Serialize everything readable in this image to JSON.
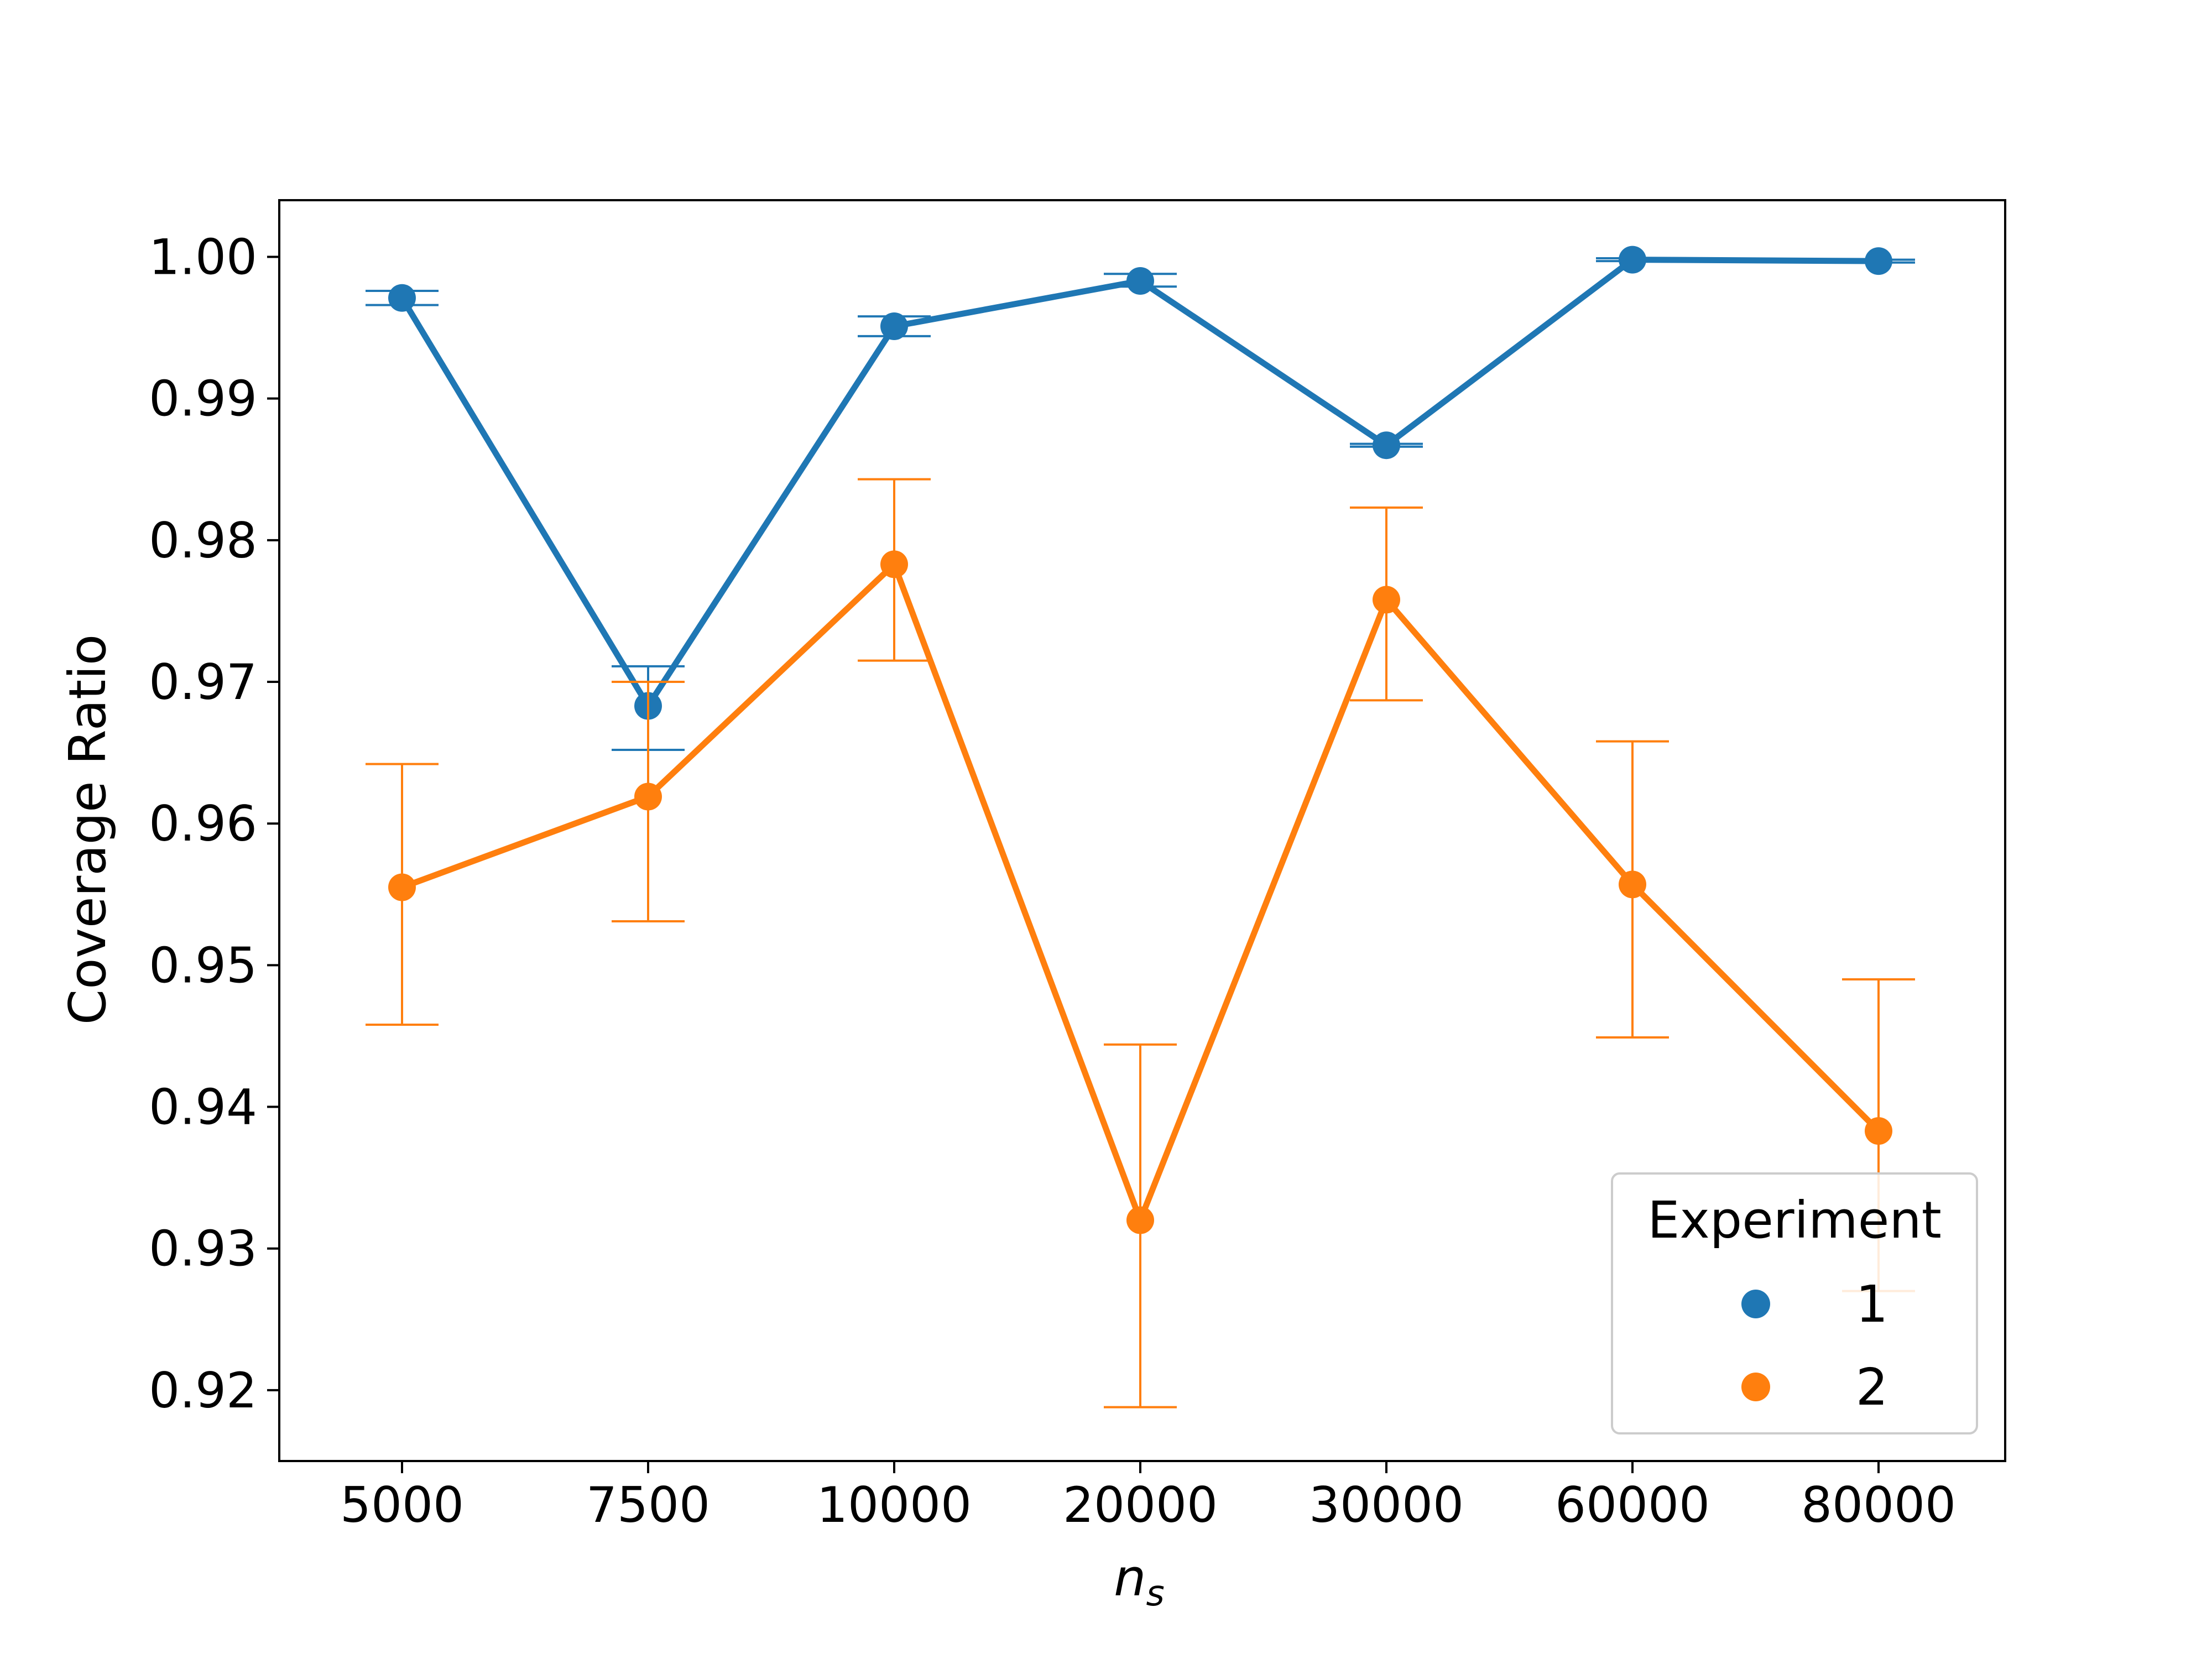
{
  "chart_data": {
    "type": "line",
    "categories": [
      "5000",
      "7500",
      "10000",
      "20000",
      "30000",
      "60000",
      "80000"
    ],
    "xlabel_base": "n",
    "xlabel_sub": "s",
    "ylabel": "Coverage Ratio",
    "ylim": [
      0.915,
      1.004
    ],
    "yticks": [
      "0.92",
      "0.93",
      "0.94",
      "0.95",
      "0.96",
      "0.97",
      "0.98",
      "0.99",
      "1.00"
    ],
    "grid": false,
    "legend_placement": "bottom-right",
    "legend_title": "Experiment",
    "series": [
      {
        "name": "1",
        "color": "#1f77b4",
        "values": [
          0.9971,
          0.9683,
          0.9951,
          0.9983,
          0.9867,
          0.9998,
          0.9997
        ],
        "err_low": [
          0.9966,
          0.9652,
          0.9944,
          0.9979,
          0.9866,
          0.9997,
          0.9996
        ],
        "err_high": [
          0.9976,
          0.9711,
          0.9958,
          0.9988,
          0.9868,
          0.9999,
          0.9998
        ]
      },
      {
        "name": "2",
        "color": "#ff7f0e",
        "values": [
          0.9555,
          0.9619,
          0.9783,
          0.932,
          0.9758,
          0.9557,
          0.9383
        ],
        "err_low": [
          0.9458,
          0.9531,
          0.9715,
          0.9188,
          0.9687,
          0.9449,
          0.927
        ],
        "err_high": [
          0.9642,
          0.97,
          0.9843,
          0.9444,
          0.9823,
          0.9658,
          0.949
        ]
      }
    ]
  }
}
